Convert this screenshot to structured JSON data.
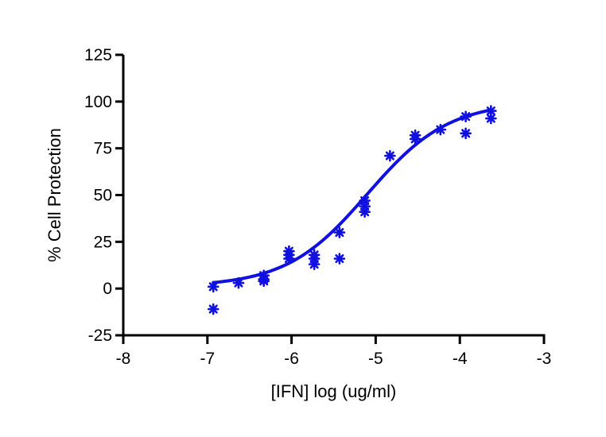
{
  "chart_data": {
    "type": "scatter",
    "title": "",
    "xlabel": "[IFN] log (ug/ml)",
    "ylabel": "% Cell Protection",
    "xlim": [
      -8,
      -3
    ],
    "ylim": [
      -25,
      125
    ],
    "xticks": [
      -8,
      -7,
      -6,
      -5,
      -4,
      -3
    ],
    "yticks": [
      -25,
      0,
      25,
      50,
      75,
      100,
      125
    ],
    "xtick_labels": [
      "-8",
      "-7",
      "-6",
      "-5",
      "-4",
      "-3"
    ],
    "ytick_labels": [
      "-25",
      "0",
      "25",
      "50",
      "75",
      "100",
      "125"
    ],
    "grid": false,
    "legend": "none",
    "color": "#1010e0",
    "marker": "asterisk",
    "points": [
      {
        "x": -6.93,
        "y": 1
      },
      {
        "x": -6.93,
        "y": -11
      },
      {
        "x": -6.63,
        "y": 3
      },
      {
        "x": -6.33,
        "y": 4
      },
      {
        "x": -6.33,
        "y": 5
      },
      {
        "x": -6.33,
        "y": 7
      },
      {
        "x": -6.03,
        "y": 16
      },
      {
        "x": -6.03,
        "y": 18
      },
      {
        "x": -6.03,
        "y": 20
      },
      {
        "x": -5.73,
        "y": 13
      },
      {
        "x": -5.73,
        "y": 16
      },
      {
        "x": -5.73,
        "y": 18
      },
      {
        "x": -5.43,
        "y": 16
      },
      {
        "x": -5.43,
        "y": 30
      },
      {
        "x": -5.13,
        "y": 41
      },
      {
        "x": -5.13,
        "y": 44
      },
      {
        "x": -5.13,
        "y": 47
      },
      {
        "x": -4.83,
        "y": 71
      },
      {
        "x": -4.53,
        "y": 80
      },
      {
        "x": -4.53,
        "y": 82
      },
      {
        "x": -4.23,
        "y": 85
      },
      {
        "x": -3.93,
        "y": 83
      },
      {
        "x": -3.93,
        "y": 92
      },
      {
        "x": -3.63,
        "y": 91
      },
      {
        "x": -3.63,
        "y": 95
      }
    ],
    "fit_curve": {
      "model": "sigmoidal dose-response",
      "bottom": 1,
      "top": 100,
      "logEC50": -5.1,
      "hill_slope": 0.9,
      "x_range": [
        -6.93,
        -3.63
      ]
    }
  }
}
